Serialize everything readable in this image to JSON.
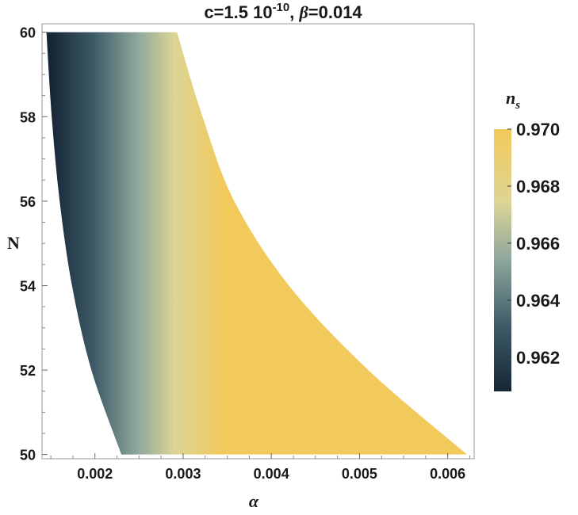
{
  "chart_data": {
    "type": "region-density",
    "title_parts": {
      "prefix": "c=1.5 10",
      "exponent": "-10",
      "sep": ", ",
      "greek": "β",
      "suffix": "=0.014"
    },
    "xlabel": "α",
    "ylabel": "N",
    "xlim": [
      0.0014,
      0.0063
    ],
    "ylim": [
      49.9,
      60.2
    ],
    "x_ticks": [
      {
        "value": 0.002,
        "label": "0.002"
      },
      {
        "value": 0.003,
        "label": "0.003"
      },
      {
        "value": 0.004,
        "label": "0.004"
      },
      {
        "value": 0.005,
        "label": "0.005"
      },
      {
        "value": 0.006,
        "label": "0.006"
      }
    ],
    "y_ticks": [
      {
        "value": 50,
        "label": "50"
      },
      {
        "value": 52,
        "label": "52"
      },
      {
        "value": 54,
        "label": "54"
      },
      {
        "value": 56,
        "label": "56"
      },
      {
        "value": 58,
        "label": "58"
      },
      {
        "value": 60,
        "label": "60"
      }
    ],
    "region": {
      "left_boundary": [
        [
          0.0023,
          50
        ],
        [
          0.00196,
          52
        ],
        [
          0.00174,
          54
        ],
        [
          0.0016,
          56
        ],
        [
          0.00151,
          58
        ],
        [
          0.00145,
          60
        ]
      ],
      "right_boundary": [
        [
          0.00622,
          50
        ],
        [
          0.0051,
          52
        ],
        [
          0.0042,
          54
        ],
        [
          0.00358,
          56
        ],
        [
          0.00322,
          58
        ],
        [
          0.00293,
          60
        ]
      ],
      "ns_left": 0.9608,
      "ns_right": 0.97
    },
    "colorbar": {
      "title_main": "n",
      "title_sub": "s",
      "range": [
        0.9608,
        0.97
      ],
      "ticks": [
        {
          "value": 0.962,
          "label": "0.962"
        },
        {
          "value": 0.964,
          "label": "0.964"
        },
        {
          "value": 0.966,
          "label": "0.966"
        },
        {
          "value": 0.968,
          "label": "0.968"
        },
        {
          "value": 0.97,
          "label": "0.970"
        }
      ],
      "colors": [
        {
          "t": 0.0,
          "color": "#172636"
        },
        {
          "t": 0.25,
          "color": "#3e5b67"
        },
        {
          "t": 0.5,
          "color": "#8da69c"
        },
        {
          "t": 0.72,
          "color": "#dcd596"
        },
        {
          "t": 1.0,
          "color": "#f2c95b"
        }
      ]
    },
    "grid": false
  }
}
